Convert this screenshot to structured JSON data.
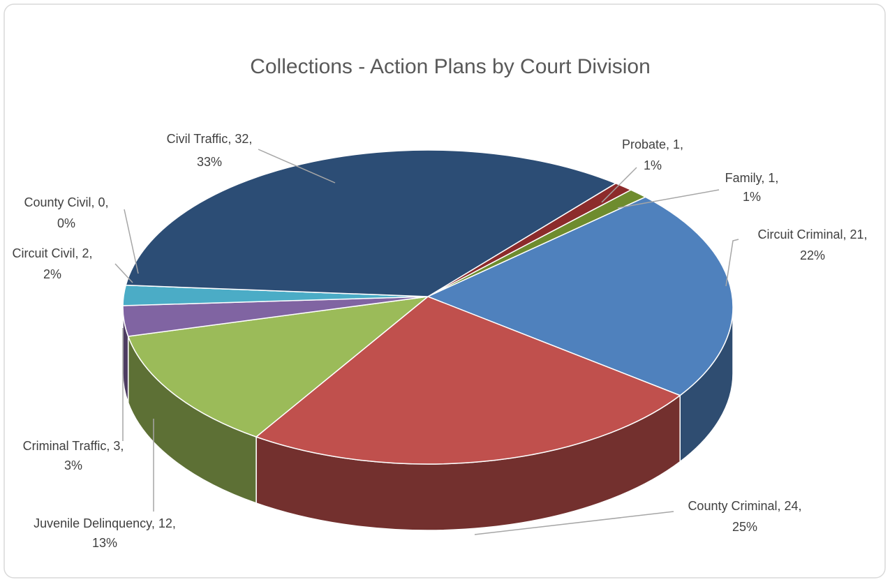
{
  "chart_data": {
    "type": "pie3d",
    "title": "Collections - Action Plans by Court Division",
    "categories": [
      "Probate",
      "Family",
      "Circuit Criminal",
      "County Criminal",
      "Juvenile Delinquency",
      "Criminal Traffic",
      "Circuit Civil",
      "County Civil",
      "Civil Traffic"
    ],
    "values": [
      1,
      1,
      21,
      24,
      12,
      3,
      2,
      0,
      32
    ],
    "percent_labels": [
      "1%",
      "1%",
      "22%",
      "25%",
      "13%",
      "3%",
      "2%",
      "0%",
      "33%"
    ],
    "colors": [
      "#8c2b2b",
      "#6e8c2e",
      "#4f81bd",
      "#c0504d",
      "#9bbb59",
      "#8064a2",
      "#4bacc6",
      "#f79646",
      "#2c4d75"
    ]
  }
}
